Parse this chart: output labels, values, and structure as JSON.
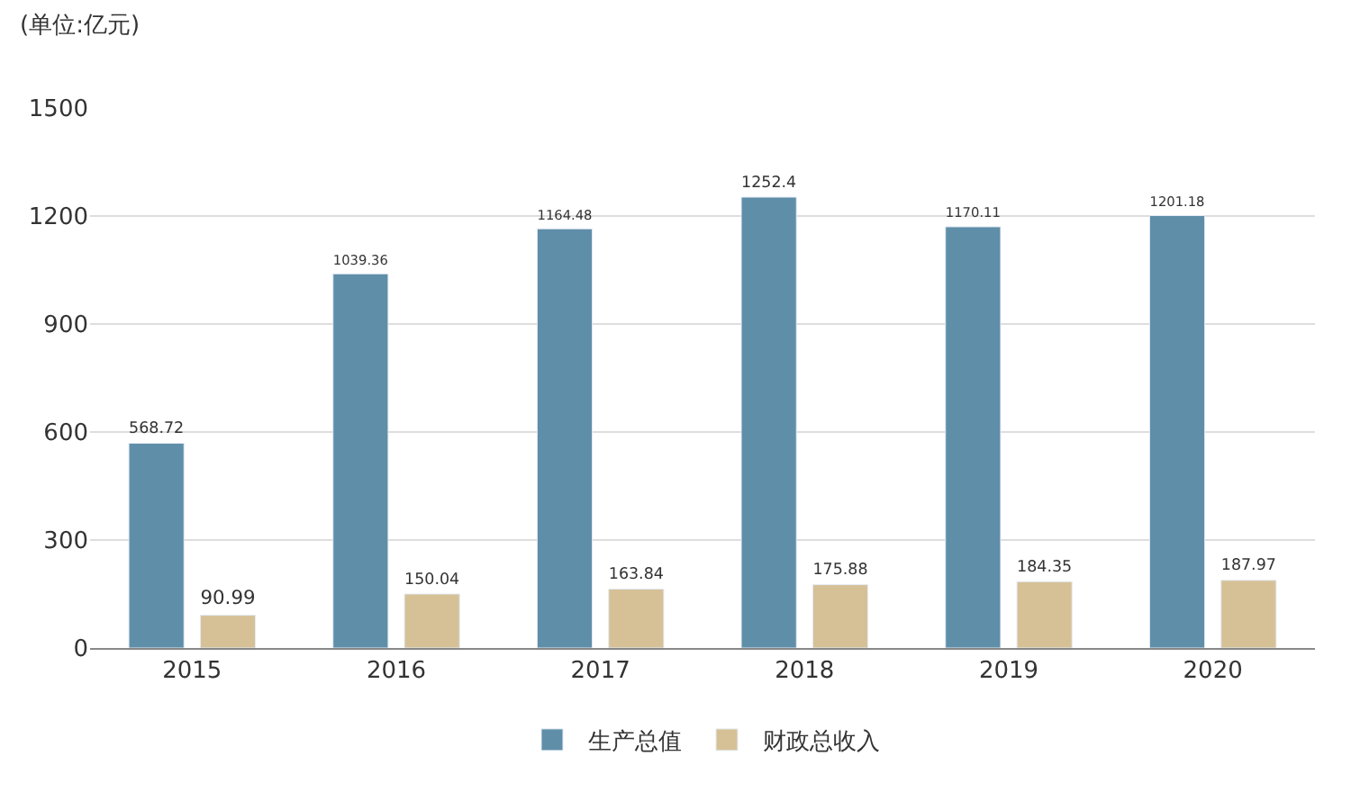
{
  "chart_data": {
    "type": "bar",
    "ylabel": "(单位:亿元)",
    "categories": [
      "2015",
      "2016",
      "2017",
      "2018",
      "2019",
      "2020"
    ],
    "series": [
      {
        "name": "生产总值",
        "color": "#5f8ea8",
        "values": [
          568.72,
          1039.36,
          1164.48,
          1252.4,
          1170.11,
          1201.18
        ]
      },
      {
        "name": "财政总收入",
        "color": "#d6c197",
        "values": [
          90.99,
          150.04,
          163.84,
          175.88,
          184.35,
          187.97
        ]
      }
    ],
    "ylim": [
      0,
      1500
    ],
    "yticks": [
      0,
      300,
      600,
      900,
      1200,
      1500
    ],
    "grid": "y",
    "legend": "bottom",
    "data_labels": true
  }
}
